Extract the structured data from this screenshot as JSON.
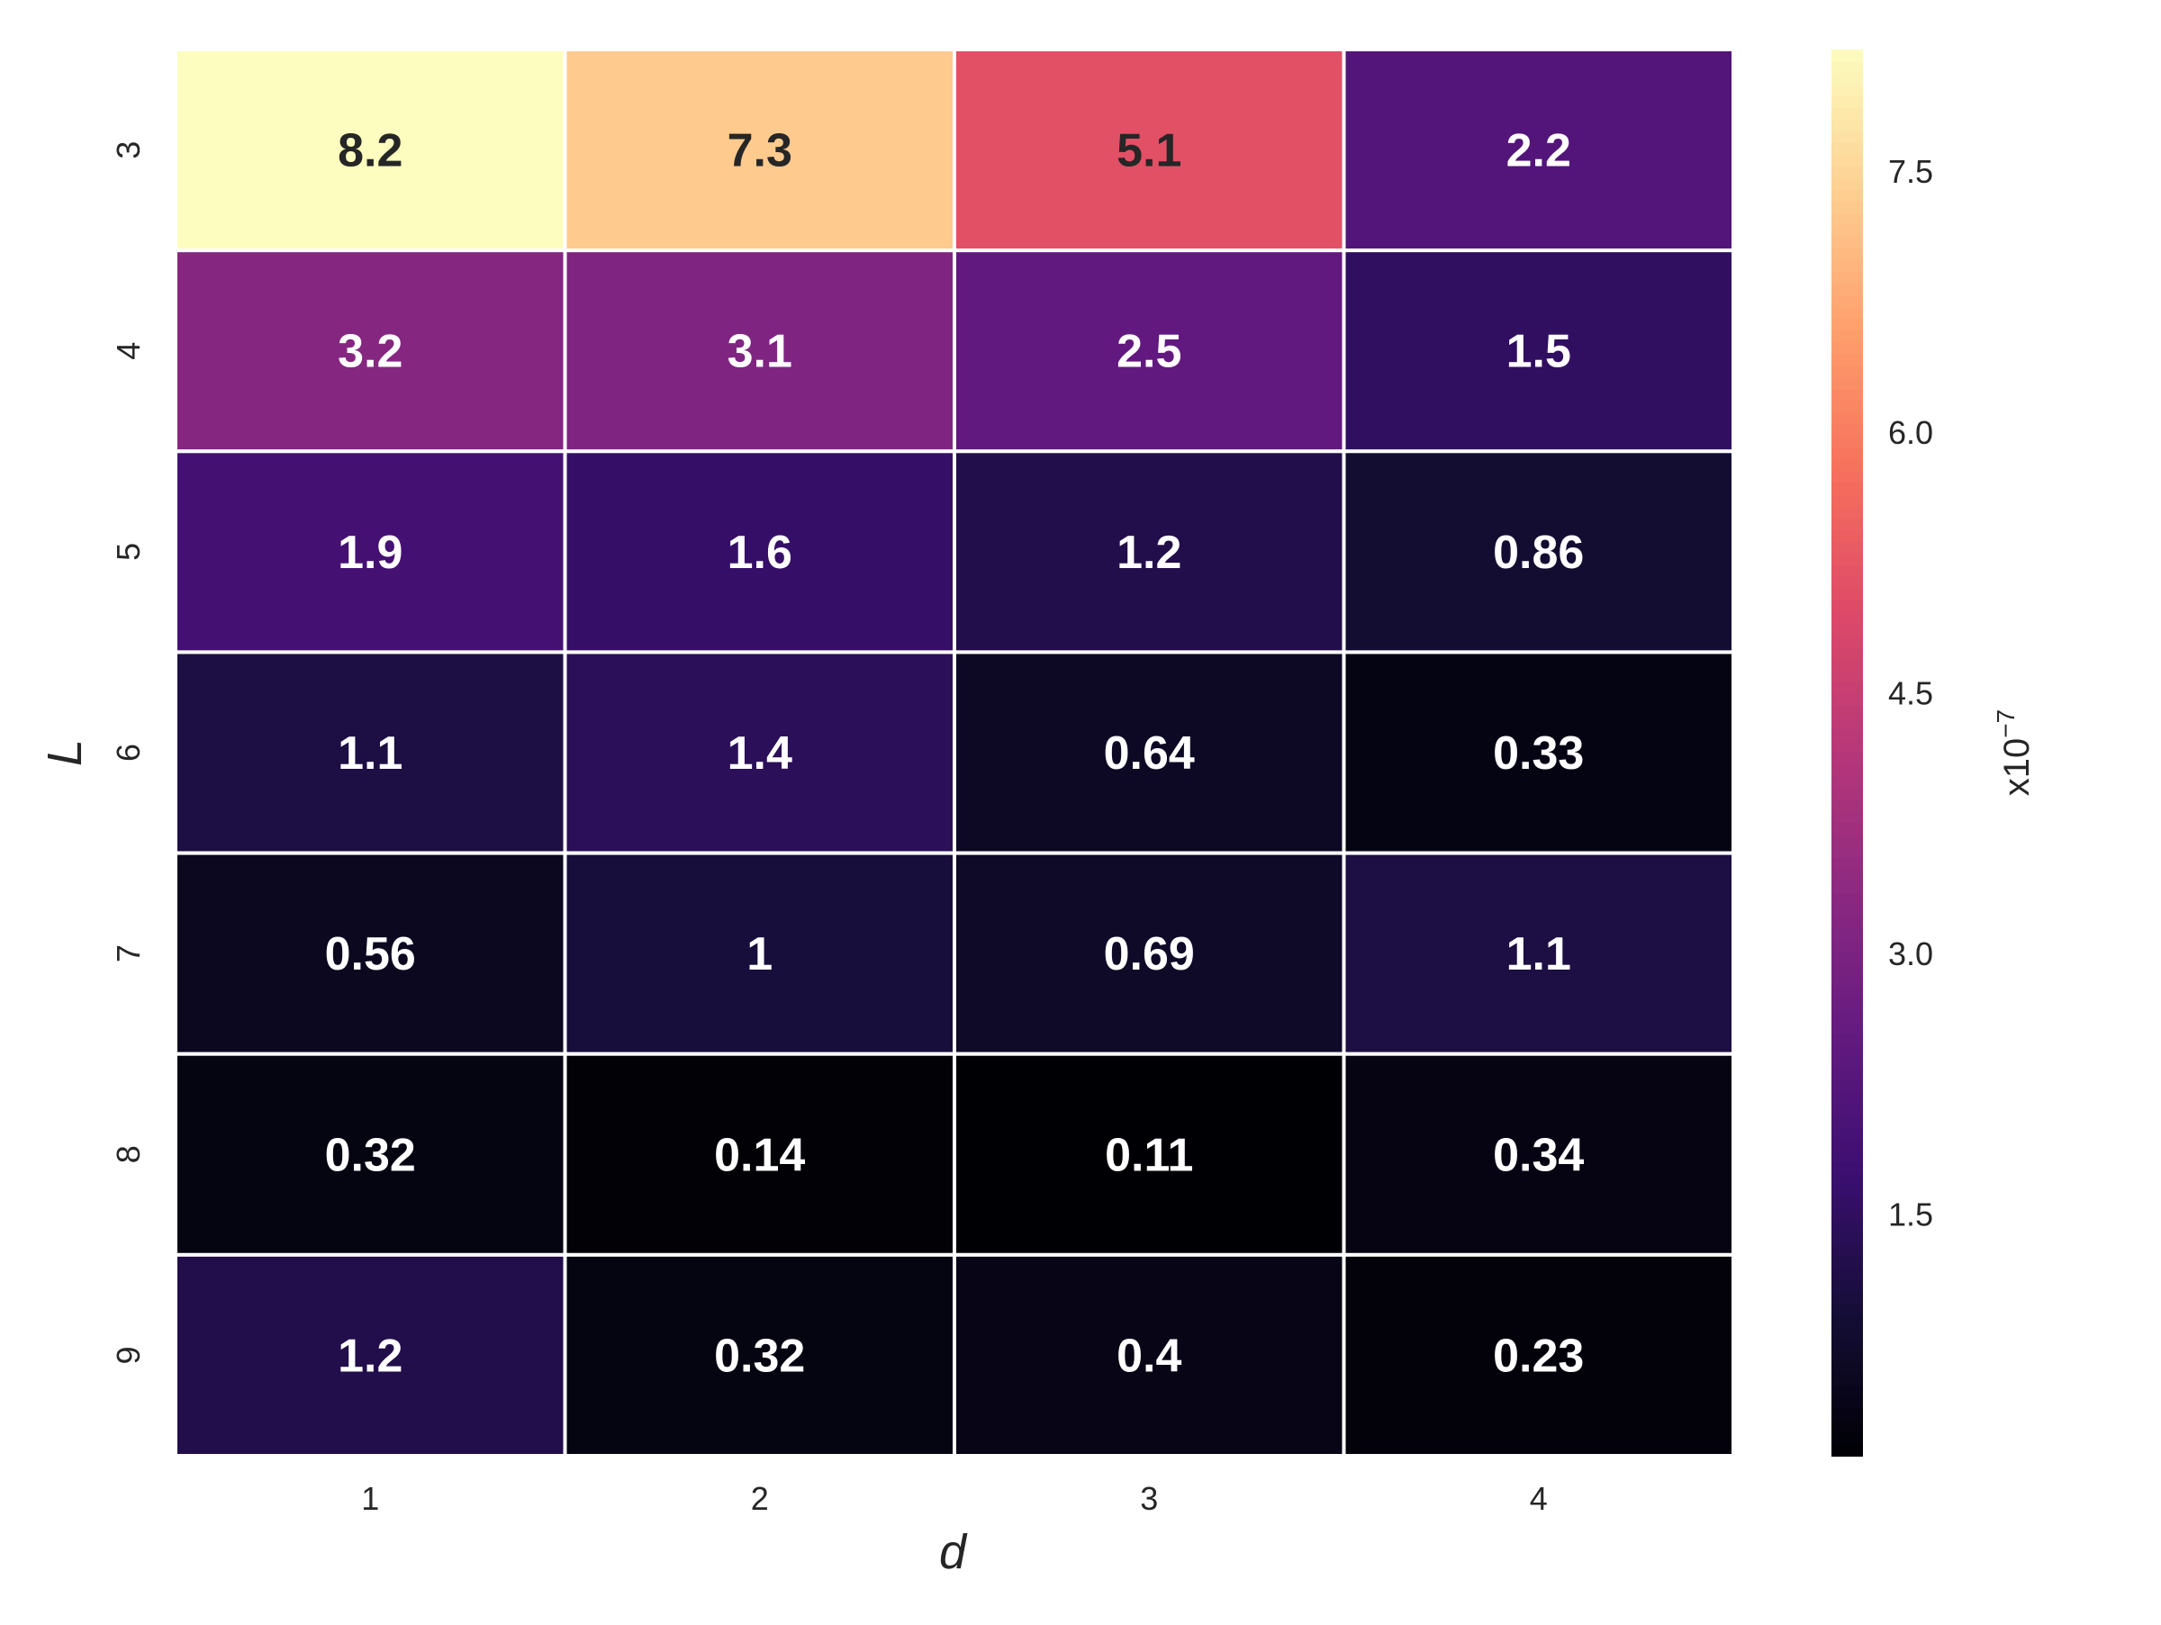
{
  "chart_data": {
    "type": "heatmap",
    "title": "",
    "xlabel": "d",
    "ylabel": "L",
    "x_categories": [
      "1",
      "2",
      "3",
      "4"
    ],
    "y_categories": [
      "3",
      "4",
      "5",
      "6",
      "7",
      "8",
      "9"
    ],
    "values": [
      [
        8.2,
        7.3,
        5.1,
        2.2
      ],
      [
        3.2,
        3.1,
        2.5,
        1.5
      ],
      [
        1.9,
        1.6,
        1.2,
        0.86
      ],
      [
        1.1,
        1.4,
        0.64,
        0.33
      ],
      [
        0.56,
        1,
        0.69,
        1.1
      ],
      [
        0.32,
        0.14,
        0.11,
        0.34
      ],
      [
        1.2,
        0.32,
        0.4,
        0.23
      ]
    ],
    "cell_labels": [
      [
        "8.2",
        "7.3",
        "5.1",
        "2.2"
      ],
      [
        "3.2",
        "3.1",
        "2.5",
        "1.5"
      ],
      [
        "1.9",
        "1.6",
        "1.2",
        "0.86"
      ],
      [
        "1.1",
        "1.4",
        "0.64",
        "0.33"
      ],
      [
        "0.56",
        "1",
        "0.69",
        "1.1"
      ],
      [
        "0.32",
        "0.14",
        "0.11",
        "0.34"
      ],
      [
        "1.2",
        "0.32",
        "0.4",
        "0.23"
      ]
    ],
    "colormap": "magma",
    "value_range": [
      0.11,
      8.2
    ],
    "colorbar": {
      "ticks": [
        1.5,
        3.0,
        4.5,
        6.0,
        7.5
      ],
      "tick_labels": [
        "1.5",
        "3.0",
        "4.5",
        "6.0",
        "7.5"
      ],
      "label_base": "x10",
      "label_exponent": "−7"
    }
  },
  "colors": {
    "cell_border": "#ffffff",
    "text_dark": "#262626",
    "text_light": "#ffffff"
  }
}
